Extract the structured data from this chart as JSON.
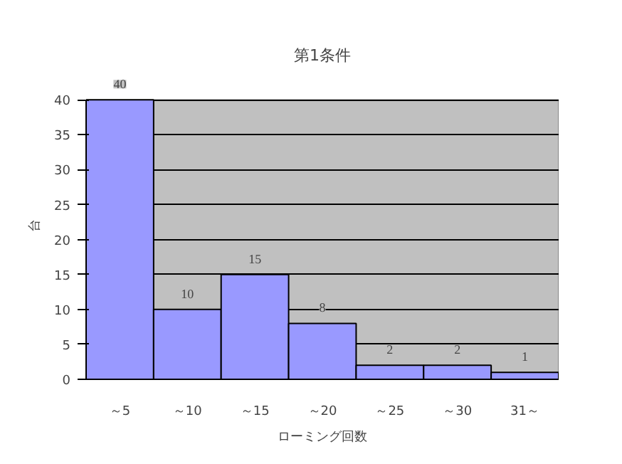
{
  "chart_data": {
    "type": "bar",
    "title": "第1条件",
    "xlabel": "ローミング回数",
    "ylabel": "台",
    "categories": [
      "～5",
      "～10",
      "～15",
      "～20",
      "～25",
      "～30",
      "31～"
    ],
    "values": [
      40,
      10,
      15,
      8,
      2,
      2,
      1
    ],
    "color": "#9999ff",
    "ylim": [
      0,
      40
    ],
    "yticks": [
      0,
      5,
      10,
      15,
      20,
      25,
      30,
      35,
      40
    ],
    "grid": "y",
    "data_labels": true
  }
}
